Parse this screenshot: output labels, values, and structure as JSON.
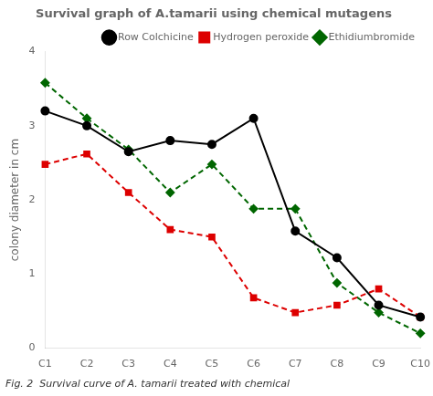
{
  "chart_data": {
    "type": "line",
    "title": "Survival graph of A.tamarii using chemical mutagens",
    "y_label": "colony diameter in cm",
    "caption": "Fig. 2  Survival curve of A. tamarii treated with chemical",
    "categories": [
      "C1",
      "C2",
      "C3",
      "C4",
      "C5",
      "C6",
      "C7",
      "C8",
      "C9",
      "C10"
    ],
    "series": [
      {
        "name": "Row Colchicine",
        "color": "#000000",
        "marker": "circle",
        "line_style": "solid",
        "values": [
          3.2,
          3.0,
          2.65,
          2.8,
          2.75,
          3.1,
          1.58,
          1.22,
          0.58,
          0.42
        ]
      },
      {
        "name": "Hydrogen peroxide",
        "color": "#dd0000",
        "marker": "square",
        "line_style": "dashed",
        "values": [
          2.48,
          2.62,
          2.1,
          1.6,
          1.5,
          0.68,
          0.48,
          0.58,
          0.8,
          0.42
        ]
      },
      {
        "name": "Ethidiumbromide",
        "color": "#006600",
        "marker": "diamond",
        "line_style": "dashed",
        "values": [
          3.58,
          3.1,
          2.68,
          2.1,
          2.48,
          1.88,
          1.88,
          0.88,
          0.48,
          0.2
        ]
      }
    ],
    "ylim": [
      0,
      4.0
    ],
    "yticks": [
      0,
      1,
      2,
      3,
      4
    ],
    "grid": false,
    "legend": "upper right"
  }
}
